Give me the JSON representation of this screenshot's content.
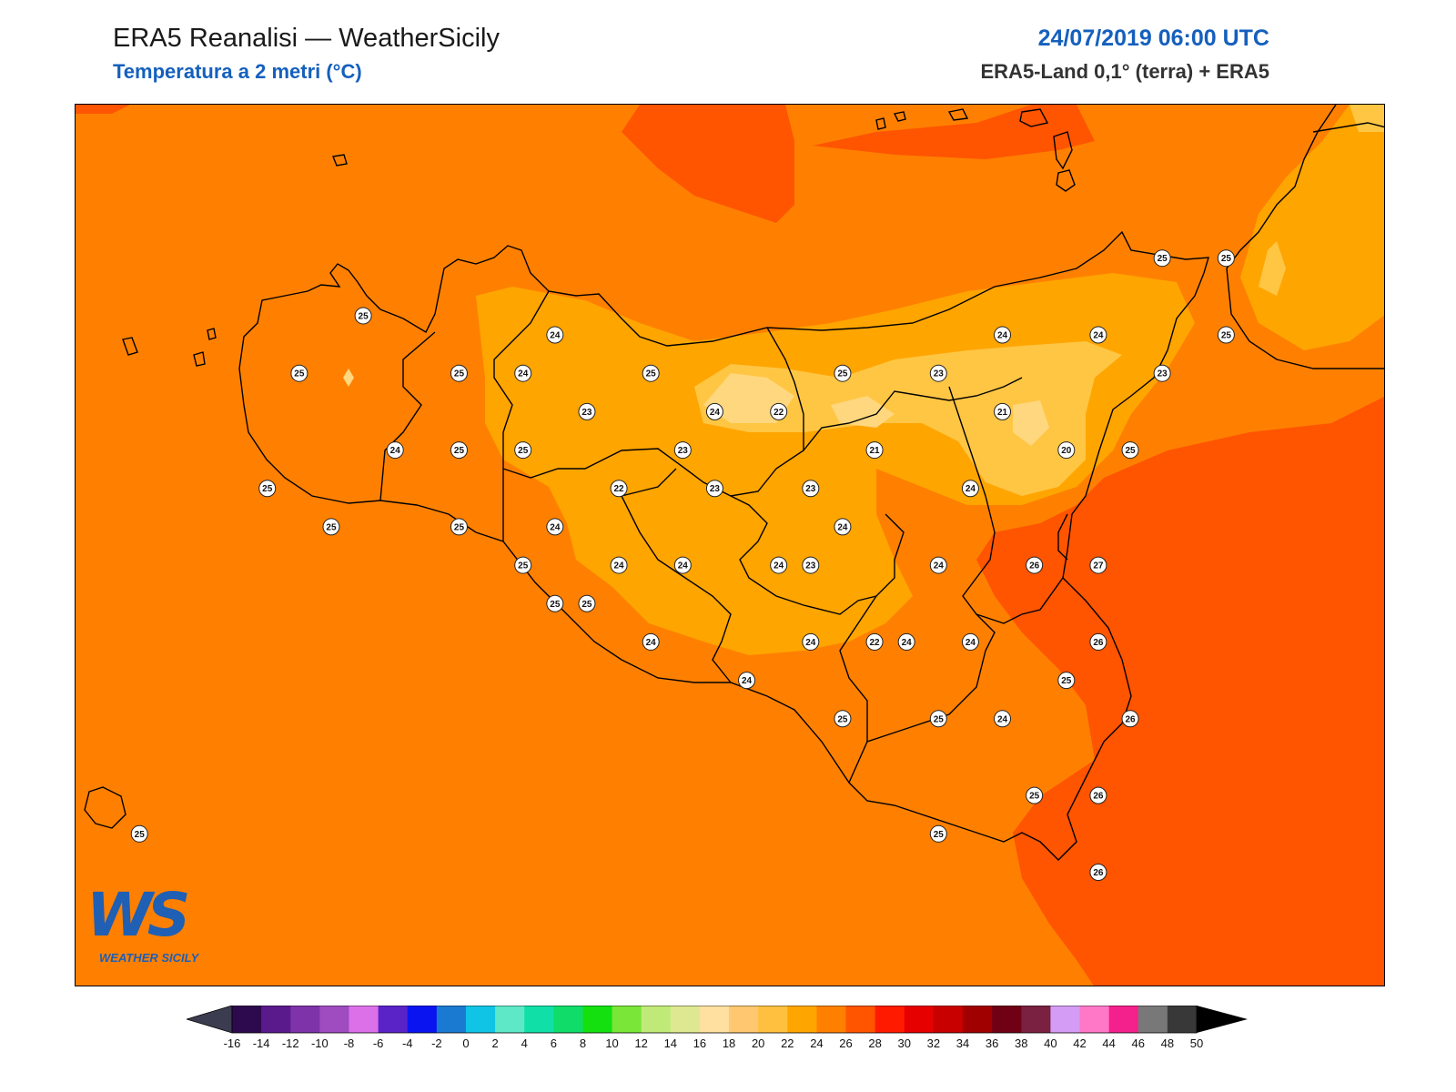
{
  "header": {
    "title": "ERA5 Reanalisi — WeatherSicily",
    "subtitle": "Temperatura a 2 metri (°C)",
    "datetime": "24/07/2019 06:00 UTC",
    "source": "ERA5-Land 0,1° (terra) + ERA5"
  },
  "logo": {
    "mark": "WS",
    "text": "WEATHER SICILY"
  },
  "colors": {
    "t24": "#ff8000",
    "t26": "#ff5400",
    "t22": "#ffa500",
    "t20": "#ffc644",
    "t18": "#ffd77e",
    "coast": "#000000"
  },
  "stations": [
    {
      "lon": 12.75,
      "lat": 38.2,
      "v": 25
    },
    {
      "lon": 12.55,
      "lat": 38.05,
      "v": 25
    },
    {
      "lon": 12.85,
      "lat": 37.85,
      "v": 24
    },
    {
      "lon": 12.45,
      "lat": 37.75,
      "v": 25
    },
    {
      "lon": 12.65,
      "lat": 37.65,
      "v": 25
    },
    {
      "lon": 13.05,
      "lat": 37.85,
      "v": 25
    },
    {
      "lon": 13.05,
      "lat": 38.05,
      "v": 25
    },
    {
      "lon": 13.25,
      "lat": 38.05,
      "v": 24
    },
    {
      "lon": 13.25,
      "lat": 37.85,
      "v": 25
    },
    {
      "lon": 13.35,
      "lat": 38.15,
      "v": 24
    },
    {
      "lon": 13.45,
      "lat": 37.95,
      "v": 23
    },
    {
      "lon": 13.55,
      "lat": 37.75,
      "v": 22
    },
    {
      "lon": 13.35,
      "lat": 37.65,
      "v": 24
    },
    {
      "lon": 13.05,
      "lat": 37.65,
      "v": 25
    },
    {
      "lon": 13.25,
      "lat": 37.55,
      "v": 25
    },
    {
      "lon": 13.35,
      "lat": 37.45,
      "v": 25
    },
    {
      "lon": 13.55,
      "lat": 37.55,
      "v": 24
    },
    {
      "lon": 13.65,
      "lat": 38.05,
      "v": 25
    },
    {
      "lon": 13.75,
      "lat": 37.85,
      "v": 23
    },
    {
      "lon": 13.85,
      "lat": 37.95,
      "v": 24
    },
    {
      "lon": 13.85,
      "lat": 37.75,
      "v": 23
    },
    {
      "lon": 13.75,
      "lat": 37.55,
      "v": 24
    },
    {
      "lon": 14.05,
      "lat": 37.95,
      "v": 22
    },
    {
      "lon": 14.15,
      "lat": 37.75,
      "v": 23
    },
    {
      "lon": 14.05,
      "lat": 37.55,
      "v": 24
    },
    {
      "lon": 14.15,
      "lat": 37.55,
      "v": 23
    },
    {
      "lon": 14.25,
      "lat": 38.05,
      "v": 25
    },
    {
      "lon": 14.25,
      "lat": 37.65,
      "v": 24
    },
    {
      "lon": 14.35,
      "lat": 37.85,
      "v": 21
    },
    {
      "lon": 14.55,
      "lat": 38.05,
      "v": 23
    },
    {
      "lon": 14.55,
      "lat": 37.55,
      "v": 24
    },
    {
      "lon": 14.65,
      "lat": 37.75,
      "v": 24
    },
    {
      "lon": 14.75,
      "lat": 37.95,
      "v": 21
    },
    {
      "lon": 14.75,
      "lat": 38.15,
      "v": 24
    },
    {
      "lon": 14.95,
      "lat": 37.85,
      "v": 20
    },
    {
      "lon": 14.85,
      "lat": 37.55,
      "v": 26
    },
    {
      "lon": 15.05,
      "lat": 38.15,
      "v": 24
    },
    {
      "lon": 15.15,
      "lat": 37.85,
      "v": 25
    },
    {
      "lon": 15.05,
      "lat": 37.55,
      "v": 27
    },
    {
      "lon": 15.05,
      "lat": 37.35,
      "v": 26
    },
    {
      "lon": 15.15,
      "lat": 37.15,
      "v": 26
    },
    {
      "lon": 14.95,
      "lat": 37.25,
      "v": 25
    },
    {
      "lon": 14.65,
      "lat": 37.35,
      "v": 24
    },
    {
      "lon": 14.75,
      "lat": 37.15,
      "v": 24
    },
    {
      "lon": 14.45,
      "lat": 37.35,
      "v": 24
    },
    {
      "lon": 14.35,
      "lat": 37.35,
      "v": 22
    },
    {
      "lon": 14.15,
      "lat": 37.35,
      "v": 24
    },
    {
      "lon": 13.95,
      "lat": 37.25,
      "v": 24
    },
    {
      "lon": 13.65,
      "lat": 37.35,
      "v": 24
    },
    {
      "lon": 13.45,
      "lat": 37.45,
      "v": 25
    },
    {
      "lon": 14.25,
      "lat": 37.15,
      "v": 25
    },
    {
      "lon": 14.55,
      "lat": 37.15,
      "v": 25
    },
    {
      "lon": 14.85,
      "lat": 36.95,
      "v": 25
    },
    {
      "lon": 15.05,
      "lat": 36.95,
      "v": 26
    },
    {
      "lon": 14.55,
      "lat": 36.85,
      "v": 25
    },
    {
      "lon": 15.05,
      "lat": 36.75,
      "v": 26
    },
    {
      "lon": 15.25,
      "lat": 38.35,
      "v": 25
    },
    {
      "lon": 15.45,
      "lat": 38.35,
      "v": 25
    },
    {
      "lon": 15.45,
      "lat": 38.15,
      "v": 25
    },
    {
      "lon": 15.25,
      "lat": 38.05,
      "v": 23
    },
    {
      "lon": 12.05,
      "lat": 36.85,
      "v": 25
    }
  ],
  "colorbar": {
    "labels": [
      "-16",
      "-14",
      "-12",
      "-10",
      "-8",
      "-6",
      "-4",
      "-2",
      "0",
      "2",
      "4",
      "6",
      "8",
      "10",
      "12",
      "14",
      "16",
      "18",
      "20",
      "22",
      "24",
      "26",
      "28",
      "30",
      "32",
      "34",
      "36",
      "38",
      "40",
      "42",
      "44",
      "46",
      "48",
      "50"
    ],
    "under_color": "#3c3c50",
    "over_color": "#000000",
    "colors": [
      "#2d0a4d",
      "#5a1a8c",
      "#7e33a8",
      "#9e4cc0",
      "#dc70e8",
      "#5a23c8",
      "#0a14f0",
      "#1a7ad2",
      "#10c4e6",
      "#5ee8c8",
      "#10e0a8",
      "#10dc6a",
      "#14e010",
      "#7ae638",
      "#c0ea78",
      "#dee890",
      "#ffe0a0",
      "#ffc870",
      "#ffc040",
      "#ffa500",
      "#ff8000",
      "#ff5400",
      "#ff1a00",
      "#e60000",
      "#c80000",
      "#a00000",
      "#700014",
      "#7a2040",
      "#d49cf4",
      "#ff78c8",
      "#f4208c",
      "#787878",
      "#383838"
    ]
  }
}
